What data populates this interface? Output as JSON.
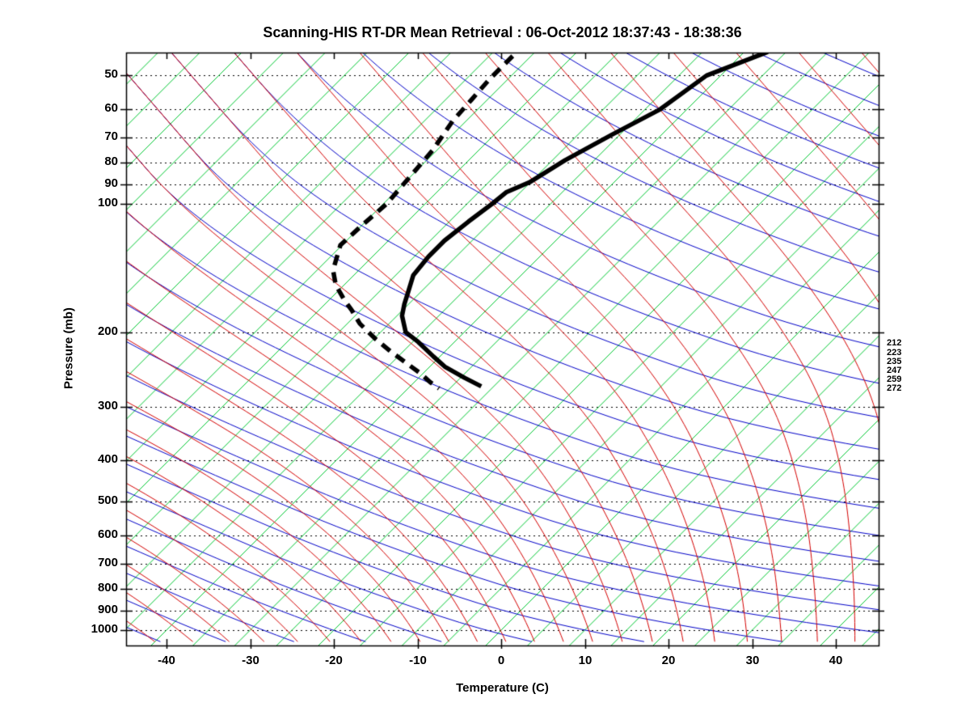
{
  "title": "Scanning-HIS RT-DR Mean Retrieval : 06-Oct-2012 18:37:43 - 18:38:36",
  "axes": {
    "x_label": "Temperature (C)",
    "y_label": "Pressure (mb)",
    "x_ticks": [
      -40,
      -30,
      -20,
      -10,
      0,
      10,
      20,
      30,
      40
    ],
    "y_ticks": [
      50,
      60,
      70,
      80,
      90,
      100,
      200,
      300,
      400,
      500,
      600,
      700,
      800,
      900,
      1000
    ]
  },
  "right_edge_labels": [
    "212",
    "223",
    "235",
    "247",
    "259",
    "272"
  ],
  "right_edge_label_pressures": [
    213,
    224,
    235,
    247,
    259,
    272
  ],
  "colors": {
    "isotherm_green": "#00c832",
    "dry_adiabat_blue": "#0000c8",
    "moist_adiabat_red": "#d40000",
    "isobar_dotted": "#000000",
    "profile_black": "#000000",
    "frame": "#000000",
    "background": "#ffffff"
  },
  "chart_data": {
    "type": "line",
    "title": "Scanning-HIS RT-DR Mean Retrieval : 06-Oct-2012 18:37:43 - 18:38:36",
    "xlabel": "Temperature (C)",
    "ylabel": "Pressure (mb)",
    "x_axis": {
      "range_c": [
        -45,
        46
      ],
      "tick_step_c": 10,
      "skew_deg": 45
    },
    "y_axis": {
      "scale": "log",
      "range_mb": [
        44,
        1090
      ],
      "ticks_mb": [
        50,
        60,
        70,
        80,
        90,
        100,
        200,
        300,
        400,
        500,
        600,
        700,
        800,
        900,
        1000
      ],
      "gridlines": "dotted_at_ticks"
    },
    "legend_position": "none",
    "series": [
      {
        "name": "temperature-retrieval",
        "style": "solid",
        "width": 5.5,
        "color": "#000000",
        "points_p_mb_t_c": [
          [
            44,
            -37.2
          ],
          [
            50,
            -41.7
          ],
          [
            60,
            -43.2
          ],
          [
            69,
            -46.0
          ],
          [
            79,
            -48.5
          ],
          [
            89,
            -50.1
          ],
          [
            94,
            -51.7
          ],
          [
            100,
            -52.0
          ],
          [
            110,
            -52.7
          ],
          [
            122,
            -53.3
          ],
          [
            133,
            -53.3
          ],
          [
            147,
            -52.9
          ],
          [
            160,
            -51.6
          ],
          [
            172,
            -50.5
          ],
          [
            183,
            -49.4
          ],
          [
            200,
            -47.0
          ],
          [
            211,
            -44.3
          ],
          [
            228,
            -40.8
          ],
          [
            241,
            -38.2
          ],
          [
            256,
            -34.5
          ],
          [
            268,
            -31.5
          ]
        ]
      },
      {
        "name": "dewpoint-retrieval",
        "style": "dashed",
        "width": 5.5,
        "color": "#000000",
        "dash": [
          13,
          9
        ],
        "points_p_mb_t_c": [
          [
            45,
            -67.2
          ],
          [
            51,
            -67.2
          ],
          [
            57,
            -66.9
          ],
          [
            64,
            -66.6
          ],
          [
            75,
            -65.5
          ],
          [
            88,
            -65.0
          ],
          [
            100,
            -64.6
          ],
          [
            113,
            -65.0
          ],
          [
            125,
            -65.2
          ],
          [
            143,
            -63.1
          ],
          [
            155,
            -61.0
          ],
          [
            168,
            -58.2
          ],
          [
            178,
            -56.0
          ],
          [
            191,
            -53.5
          ],
          [
            207,
            -49.9
          ],
          [
            222,
            -46.5
          ],
          [
            236,
            -43.3
          ],
          [
            250,
            -40.3
          ],
          [
            262,
            -38.1
          ],
          [
            271,
            -36.3
          ]
        ]
      }
    ],
    "background_lines": {
      "isotherms": {
        "color": "#00c832",
        "start_c": -110,
        "end_c": 45,
        "step_c": 5,
        "slope": "45deg_up_right"
      },
      "adiabat_families": {
        "anchor_pressure_mb": 40,
        "anchor_start_c": -300,
        "anchor_end_c": -25,
        "anchor_step_c": 7.5,
        "blend_p_low_mb": 80,
        "blend_p_high_mb": 350,
        "red_top_dtdlogp": [
          [
            120,
            95
          ],
          [
            360,
            95
          ]
        ],
        "red_deep_dtdlogp": [
          [
            150,
            190
          ],
          [
            191,
            162
          ],
          [
            230,
            120
          ],
          [
            263,
            83
          ],
          [
            300,
            57
          ],
          [
            316,
            51
          ],
          [
            340,
            42
          ]
        ],
        "blue_top_dtdlogp": [
          [
            120,
            95
          ],
          [
            177,
            95
          ],
          [
            240,
            164
          ],
          [
            300,
            230
          ],
          [
            360,
            296
          ]
        ],
        "blue_deep_dtdlogp": [
          [
            150,
            170
          ],
          [
            191,
            162
          ],
          [
            230,
            170
          ],
          [
            263,
            205
          ],
          [
            293,
            350
          ],
          [
            340,
            520
          ]
        ]
      }
    },
    "right_edge_pressure_labels": [
      212,
      223,
      235,
      247,
      259,
      272
    ]
  }
}
